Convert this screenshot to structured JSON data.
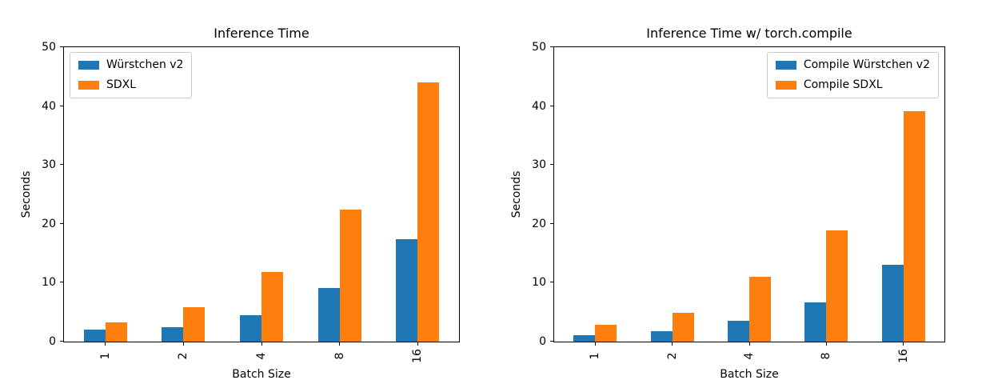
{
  "colors": {
    "series_blue": "#1f77b4",
    "series_orange": "#ff7f0e",
    "axis": "#000000",
    "legend_border": "#cccccc",
    "background": "#ffffff"
  },
  "chart_data": [
    {
      "type": "bar",
      "title": "Inference Time",
      "xlabel": "Batch Size",
      "ylabel": "Seconds",
      "categories": [
        "1",
        "2",
        "4",
        "8",
        "16"
      ],
      "series": [
        {
          "name": "Würstchen v2",
          "color": "#1f77b4",
          "values": [
            2.0,
            2.4,
            4.5,
            9.1,
            17.4
          ]
        },
        {
          "name": "SDXL",
          "color": "#ff7f0e",
          "values": [
            3.3,
            5.8,
            11.8,
            22.4,
            44.0
          ]
        }
      ],
      "ylim": [
        0,
        50
      ],
      "yticks": [
        0,
        10,
        20,
        30,
        40,
        50
      ],
      "legend_position": "upper-left",
      "grid": false
    },
    {
      "type": "bar",
      "title": "Inference Time w/ torch.compile",
      "xlabel": "Batch Size",
      "ylabel": "Seconds",
      "categories": [
        "1",
        "2",
        "4",
        "8",
        "16"
      ],
      "series": [
        {
          "name": "Compile Würstchen v2",
          "color": "#1f77b4",
          "values": [
            1.1,
            1.8,
            3.5,
            6.7,
            13.0
          ]
        },
        {
          "name": "Compile SDXL",
          "color": "#ff7f0e",
          "values": [
            2.9,
            4.9,
            11.0,
            18.9,
            39.1
          ]
        }
      ],
      "ylim": [
        0,
        50
      ],
      "yticks": [
        0,
        10,
        20,
        30,
        40,
        50
      ],
      "legend_position": "upper-right",
      "grid": false
    }
  ]
}
